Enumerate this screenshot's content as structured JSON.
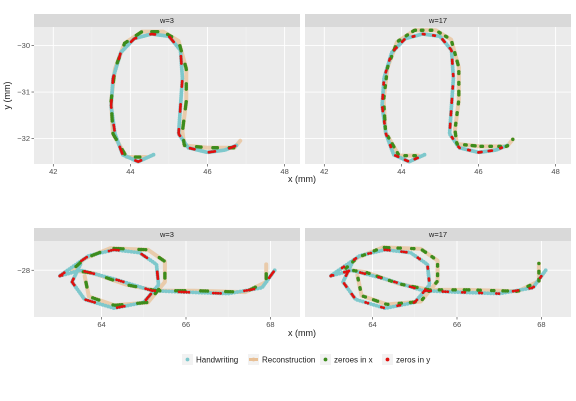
{
  "chart_data": [
    {
      "type": "scatter",
      "panels": [
        "w=3",
        "w=17"
      ],
      "xlabel": "x (mm)",
      "ylabel": "y (mm)",
      "xlim": [
        41.5,
        48.4
      ],
      "ylim": [
        -32.55,
        -29.6
      ],
      "xticks": [
        42,
        44,
        46,
        48
      ],
      "yticks": [
        -30,
        -31,
        -32
      ],
      "series": [
        {
          "name": "Handwriting",
          "points": [
            [
              44.6,
              -32.35
            ],
            [
              44.2,
              -32.5
            ],
            [
              43.8,
              -32.35
            ],
            [
              43.6,
              -31.9
            ],
            [
              43.5,
              -31.3
            ],
            [
              43.55,
              -30.7
            ],
            [
              43.75,
              -30.15
            ],
            [
              44.1,
              -29.85
            ],
            [
              44.55,
              -29.75
            ],
            [
              45.0,
              -29.8
            ],
            [
              45.3,
              -30.1
            ],
            [
              45.35,
              -30.7
            ],
            [
              45.3,
              -31.3
            ],
            [
              45.25,
              -31.9
            ],
            [
              45.5,
              -32.2
            ],
            [
              46.0,
              -32.3
            ],
            [
              46.45,
              -32.25
            ],
            [
              46.75,
              -32.15
            ]
          ]
        },
        {
          "name": "Reconstruction",
          "points": [
            [
              44.4,
              -32.4
            ],
            [
              43.9,
              -32.4
            ],
            [
              43.55,
              -31.9
            ],
            [
              43.5,
              -31.2
            ],
            [
              43.6,
              -30.5
            ],
            [
              43.85,
              -29.95
            ],
            [
              44.3,
              -29.7
            ],
            [
              44.85,
              -29.7
            ],
            [
              45.25,
              -29.9
            ],
            [
              45.45,
              -30.5
            ],
            [
              45.45,
              -31.2
            ],
            [
              45.35,
              -31.85
            ],
            [
              45.4,
              -32.15
            ],
            [
              46.0,
              -32.2
            ],
            [
              46.7,
              -32.2
            ],
            [
              46.85,
              -32.05
            ]
          ]
        },
        {
          "name": "zeroes in x"
        },
        {
          "name": "zeros in y"
        }
      ]
    },
    {
      "type": "scatter",
      "panels": [
        "w=3",
        "w=17"
      ],
      "xlabel": "x (mm)",
      "ylabel": "",
      "xlim": [
        62.4,
        68.7
      ],
      "ylim": [
        -29.6,
        -27.0
      ],
      "xticks": [
        64,
        66,
        68
      ],
      "yticks": [
        -28
      ],
      "series": [
        {
          "name": "Handwriting",
          "points": [
            [
              63.5,
              -27.8
            ],
            [
              63.3,
              -28.4
            ],
            [
              63.6,
              -29.0
            ],
            [
              64.3,
              -29.3
            ],
            [
              65.0,
              -29.1
            ],
            [
              65.35,
              -28.5
            ],
            [
              65.3,
              -27.8
            ],
            [
              64.9,
              -27.4
            ],
            [
              64.3,
              -27.3
            ],
            [
              63.7,
              -27.5
            ],
            [
              63.3,
              -27.9
            ],
            [
              63.0,
              -28.2
            ],
            [
              63.5,
              -28.0
            ],
            [
              64.3,
              -28.3
            ],
            [
              65.2,
              -28.7
            ],
            [
              66.0,
              -28.75
            ],
            [
              67.0,
              -28.8
            ],
            [
              67.8,
              -28.6
            ],
            [
              68.1,
              -28.0
            ]
          ]
        },
        {
          "name": "Reconstruction",
          "points": [
            [
              63.6,
              -28.2
            ],
            [
              63.7,
              -28.9
            ],
            [
              64.3,
              -29.2
            ],
            [
              65.1,
              -29.1
            ],
            [
              65.5,
              -28.4
            ],
            [
              65.5,
              -27.7
            ],
            [
              65.1,
              -27.3
            ],
            [
              64.2,
              -27.25
            ],
            [
              63.6,
              -27.6
            ],
            [
              63.3,
              -28.0
            ],
            [
              63.8,
              -28.1
            ],
            [
              64.6,
              -28.5
            ],
            [
              65.3,
              -28.7
            ],
            [
              66.2,
              -28.7
            ],
            [
              67.4,
              -28.75
            ],
            [
              67.9,
              -28.4
            ],
            [
              67.9,
              -27.8
            ]
          ]
        },
        {
          "name": "zeroes in x"
        },
        {
          "name": "zeros in y"
        }
      ]
    }
  ],
  "colors": {
    "Handwriting": "#7ec8cc",
    "Reconstruction": "#e8c096",
    "zeroes in x": "#3c8c1c",
    "zeros in y": "#e0100e",
    "panel_bg": "#ebebeb",
    "strip_bg": "#d9d9d9",
    "grid_major": "#ffffff",
    "tick_text": "#4d4d4d"
  },
  "legend": {
    "position": "bottom",
    "items": [
      "Handwriting",
      "Reconstruction",
      "zeroes in x",
      "zeros in y"
    ]
  }
}
